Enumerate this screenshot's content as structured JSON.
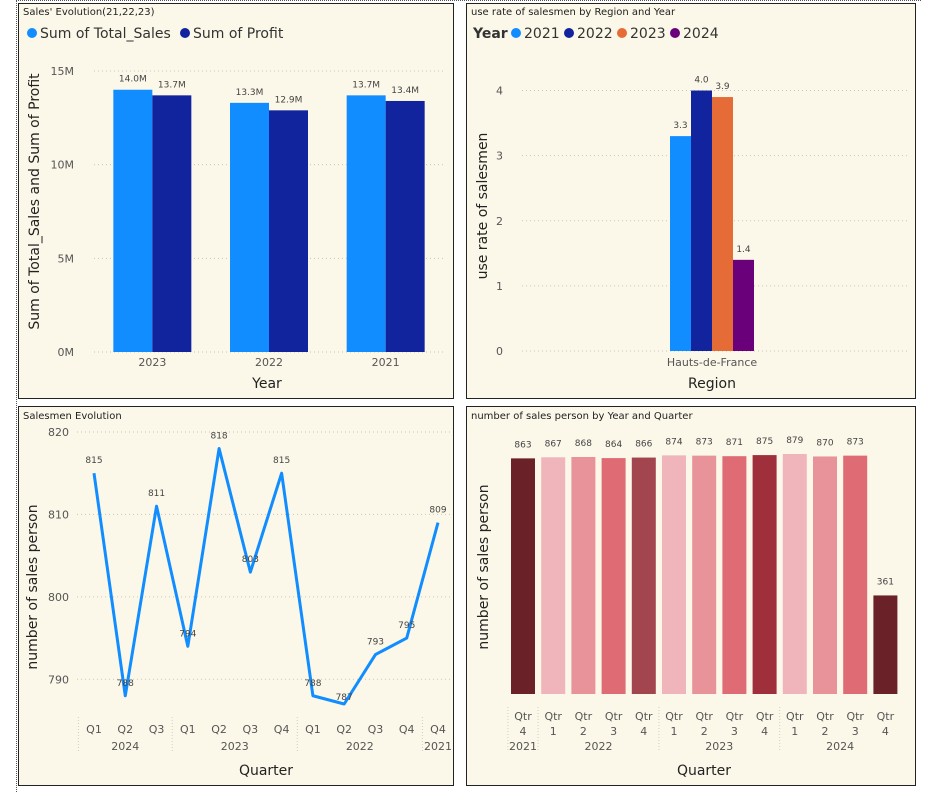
{
  "chart_data": [
    {
      "type": "bar",
      "title": "Sales' Evolution(21,22,23)",
      "categories": [
        "2023",
        "2022",
        "2021"
      ],
      "series": [
        {
          "name": "Sum of Total_Sales",
          "values": [
            14.0,
            13.3,
            13.7
          ],
          "labels": [
            "14.0M",
            "13.3M",
            "13.7M"
          ],
          "color": "#118dff"
        },
        {
          "name": "Sum of Profit",
          "values": [
            13.7,
            12.9,
            13.4
          ],
          "labels": [
            "13.7M",
            "12.9M",
            "13.4M"
          ],
          "color": "#12239e"
        }
      ],
      "ylim": [
        0,
        15
      ],
      "yticks": [
        0,
        5,
        10,
        15
      ],
      "yticklabels": [
        "0M",
        "5M",
        "10M",
        "15M"
      ],
      "xlabel": "Year",
      "ylabel": "Sum of Total_Sales and Sum of Profit",
      "legend": "top-left",
      "grid": true
    },
    {
      "type": "bar",
      "title": "use rate of salesmen by Region and Year",
      "categories": [
        "Hauts-de-France"
      ],
      "legend_title": "Year",
      "series": [
        {
          "name": "2021",
          "values": [
            3.3
          ],
          "labels": [
            "3.3"
          ],
          "color": "#118dff"
        },
        {
          "name": "2022",
          "values": [
            4.0
          ],
          "labels": [
            "4.0"
          ],
          "color": "#12239e"
        },
        {
          "name": "2023",
          "values": [
            3.9
          ],
          "labels": [
            "3.9"
          ],
          "color": "#e66c37"
        },
        {
          "name": "2024",
          "values": [
            1.4
          ],
          "labels": [
            "1.4"
          ],
          "color": "#6b007b"
        }
      ],
      "ylim": [
        0,
        4.3
      ],
      "yticks": [
        0,
        1,
        2,
        3,
        4
      ],
      "yticklabels": [
        "0",
        "1",
        "2",
        "3",
        "4"
      ],
      "xlabel": "Region",
      "ylabel": "use rate of salesmen",
      "legend": "top-left",
      "grid": true
    },
    {
      "type": "line",
      "title": "Salesmen Evolution",
      "x": [
        "Q1",
        "Q2",
        "Q3",
        "Q1",
        "Q2",
        "Q3",
        "Q4",
        "Q1",
        "Q2",
        "Q3",
        "Q4",
        "Q4"
      ],
      "groups": [
        {
          "label": "2024",
          "span": [
            0,
            2
          ]
        },
        {
          "label": "2023",
          "span": [
            3,
            6
          ]
        },
        {
          "label": "2022",
          "span": [
            7,
            10
          ]
        },
        {
          "label": "2021",
          "span": [
            11,
            11
          ]
        }
      ],
      "values": [
        815,
        788,
        811,
        794,
        818,
        803,
        815,
        788,
        787,
        793,
        795,
        809
      ],
      "labels": [
        "815",
        "788",
        "811",
        "794",
        "818",
        "803",
        "815",
        "788",
        "787",
        "793",
        "795",
        "809"
      ],
      "color": "#118dff",
      "ylim": [
        787,
        820
      ],
      "yticks": [
        790,
        800,
        810,
        820
      ],
      "yticklabels": [
        "790",
        "800",
        "810",
        "820"
      ],
      "xlabel": "Quarter",
      "ylabel": "number of sales person",
      "grid": true
    },
    {
      "type": "bar",
      "title": "number of sales person by Year and Quarter",
      "categories": [
        "Qtr 4",
        "Qtr 1",
        "Qtr 2",
        "Qtr 3",
        "Qtr 4",
        "Qtr 1",
        "Qtr 2",
        "Qtr 3",
        "Qtr 4",
        "Qtr 1",
        "Qtr 2",
        "Qtr 3",
        "Qtr 4"
      ],
      "category_lines": [
        [
          "Qtr",
          "4"
        ],
        [
          "Qtr",
          "1"
        ],
        [
          "Qtr",
          "2"
        ],
        [
          "Qtr",
          "3"
        ],
        [
          "Qtr",
          "4"
        ],
        [
          "Qtr",
          "1"
        ],
        [
          "Qtr",
          "2"
        ],
        [
          "Qtr",
          "3"
        ],
        [
          "Qtr",
          "4"
        ],
        [
          "Qtr",
          "1"
        ],
        [
          "Qtr",
          "2"
        ],
        [
          "Qtr",
          "3"
        ],
        [
          "Qtr",
          "4"
        ]
      ],
      "groups": [
        {
          "label": "2021",
          "span": [
            0,
            0
          ]
        },
        {
          "label": "2022",
          "span": [
            1,
            4
          ]
        },
        {
          "label": "2023",
          "span": [
            5,
            8
          ]
        },
        {
          "label": "2024",
          "span": [
            9,
            12
          ]
        }
      ],
      "values": [
        863,
        867,
        868,
        864,
        866,
        874,
        873,
        871,
        875,
        879,
        870,
        873,
        361
      ],
      "labels": [
        "863",
        "867",
        "868",
        "864",
        "866",
        "874",
        "873",
        "871",
        "875",
        "879",
        "870",
        "873",
        "361"
      ],
      "colors": [
        "#6b2128",
        "#efb5bb",
        "#e8939a",
        "#df6b74",
        "#a3454e",
        "#efb5bb",
        "#e8939a",
        "#df6b74",
        "#a02f3c",
        "#efb5bb",
        "#e8939a",
        "#df6b74",
        "#6b2128"
      ],
      "ylim": [
        0,
        879
      ],
      "xlabel": "Quarter",
      "ylabel": "number of sales person",
      "grid": false
    }
  ]
}
